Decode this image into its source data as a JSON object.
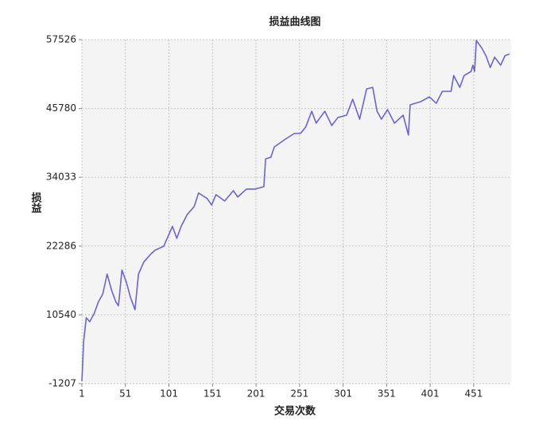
{
  "chart_data": {
    "type": "line",
    "title": "损益曲线图",
    "x_label": "交易次数",
    "y_label": "损益",
    "x": [
      1,
      3,
      6,
      10,
      15,
      20,
      25,
      30,
      35,
      40,
      43,
      47,
      52,
      57,
      62,
      66,
      72,
      80,
      85,
      95,
      105,
      110,
      115,
      122,
      130,
      135,
      145,
      150,
      155,
      165,
      175,
      180,
      190,
      200,
      210,
      212,
      218,
      222,
      235,
      245,
      252,
      258,
      265,
      270,
      280,
      288,
      295,
      305,
      312,
      320,
      328,
      335,
      340,
      345,
      352,
      360,
      370,
      376,
      378,
      390,
      400,
      408,
      415,
      425,
      428,
      435,
      440,
      448,
      450,
      452,
      454,
      460,
      465,
      470,
      475,
      482,
      487,
      492
    ],
    "series": [
      {
        "name": "损益",
        "color": "#6a64cc",
        "values": [
          -800,
          6000,
          10050,
          9370,
          10730,
          12760,
          14120,
          17510,
          14800,
          12760,
          12090,
          18190,
          16150,
          13440,
          11410,
          17510,
          19540,
          20900,
          21580,
          22260,
          25650,
          23620,
          25650,
          27680,
          29040,
          31350,
          30390,
          29310,
          31070,
          29990,
          31750,
          30670,
          32020,
          32020,
          32430,
          37180,
          37450,
          39210,
          40570,
          41520,
          41520,
          42600,
          45310,
          43280,
          45310,
          42880,
          44240,
          44640,
          47360,
          43960,
          49120,
          49390,
          45310,
          43960,
          45580,
          43280,
          44640,
          41250,
          46400,
          46940,
          47760,
          46680,
          48710,
          48710,
          51420,
          49390,
          51420,
          52100,
          53190,
          52100,
          57400,
          56170,
          54810,
          52780,
          54540,
          53190,
          54810,
          55080
        ]
      }
    ],
    "xlim": [
      1,
      494
    ],
    "ylim": [
      -1207,
      57526
    ],
    "xticks": [
      1,
      51,
      101,
      151,
      201,
      251,
      301,
      351,
      401,
      451
    ],
    "yticks": [
      -1207,
      10540,
      22286,
      34033,
      45780,
      57526
    ],
    "grid": true,
    "plot_background": "#f4f4f4"
  }
}
